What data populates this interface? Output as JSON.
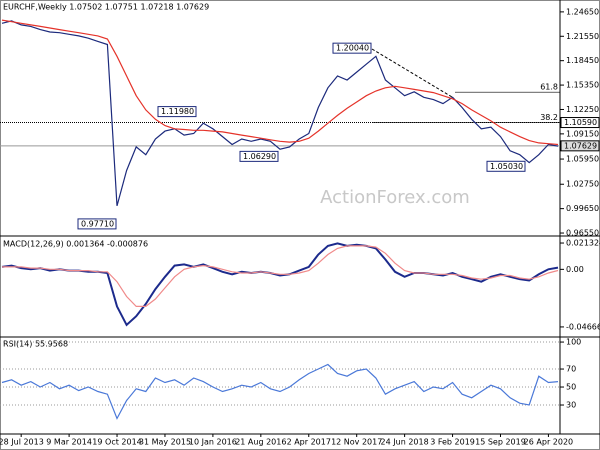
{
  "chart_data": [
    {
      "type": "line",
      "title": "EURCHF,Weekly 1.07502 1.07751 1.07218 1.07629",
      "ylim": [
        0.963,
        1.2616
      ],
      "yticks": [
        {
          "value": 1.2465,
          "label": "1.24650"
        },
        {
          "value": 1.2155,
          "label": "1.21550"
        },
        {
          "value": 1.1845,
          "label": "1.18450"
        },
        {
          "value": 1.1535,
          "label": "1.15350"
        },
        {
          "value": 1.1225,
          "label": "1.12250"
        },
        {
          "value": 1.0915,
          "label": "1.09150"
        },
        {
          "value": 1.0595,
          "label": "1.05950"
        },
        {
          "value": 1.0275,
          "label": "1.02750"
        },
        {
          "value": 0.9965,
          "label": "0.99650"
        },
        {
          "value": 0.9655,
          "label": "0.96550"
        }
      ],
      "series": [
        {
          "name": "EURCHF",
          "color": "#1c2a7c",
          "values": [
            1.232,
            1.235,
            1.23,
            1.228,
            1.224,
            1.221,
            1.22,
            1.218,
            1.216,
            1.213,
            1.209,
            1.205,
            1.0,
            1.045,
            1.075,
            1.065,
            1.085,
            1.095,
            1.098,
            1.09,
            1.092,
            1.105,
            1.098,
            1.088,
            1.078,
            1.085,
            1.082,
            1.085,
            1.082,
            1.072,
            1.075,
            1.085,
            1.092,
            1.125,
            1.15,
            1.165,
            1.16,
            1.17,
            1.18,
            1.19,
            1.16,
            1.15,
            1.14,
            1.145,
            1.138,
            1.135,
            1.13,
            1.138,
            1.125,
            1.11,
            1.098,
            1.1,
            1.088,
            1.07,
            1.065,
            1.055,
            1.065,
            1.078,
            1.076
          ]
        },
        {
          "name": "MA",
          "color": "#e5332a",
          "values": [
            1.236,
            1.234,
            1.232,
            1.23,
            1.228,
            1.226,
            1.224,
            1.222,
            1.22,
            1.218,
            1.216,
            1.212,
            1.19,
            1.165,
            1.14,
            1.122,
            1.11,
            1.102,
            1.098,
            1.097,
            1.096,
            1.096,
            1.095,
            1.094,
            1.092,
            1.09,
            1.088,
            1.086,
            1.084,
            1.082,
            1.081,
            1.082,
            1.086,
            1.095,
            1.105,
            1.115,
            1.124,
            1.132,
            1.14,
            1.146,
            1.15,
            1.152,
            1.15,
            1.148,
            1.146,
            1.144,
            1.14,
            1.136,
            1.13,
            1.122,
            1.115,
            1.108,
            1.1,
            1.094,
            1.088,
            1.083,
            1.08,
            1.079,
            1.078
          ]
        }
      ],
      "annotations": [
        {
          "label": "1.20040",
          "value": 1.2004
        },
        {
          "label": "1.11980",
          "value": 1.1198
        },
        {
          "label": "1.06290",
          "value": 1.0629
        },
        {
          "label": "1.05030",
          "value": 1.0503
        },
        {
          "label": "0.97710",
          "value": 0.9771
        }
      ],
      "levels": [
        {
          "label": "1.10590",
          "value": 1.1059
        },
        {
          "label": "1.07629",
          "value": 1.07629
        }
      ],
      "fib": [
        {
          "label": "61.8",
          "value": 1.1445
        },
        {
          "label": "38.2",
          "value": 1.1059
        }
      ],
      "watermark": "ActionForex.com"
    },
    {
      "type": "line",
      "title": "MACD(12,26,9) 0.001364 -0.000876",
      "ylim": [
        -0.0532,
        0.0254
      ],
      "yticks": [
        0.021324,
        {
          "value": 0,
          "label": "0.00"
        },
        -0.046663
      ],
      "series": [
        {
          "name": "MACD",
          "color": "#1c2a8c",
          "values": [
            0.002,
            0.003,
            0.001,
            0.0,
            0.001,
            -0.001,
            0.0,
            -0.001,
            -0.001,
            -0.002,
            -0.002,
            -0.003,
            -0.03,
            -0.045,
            -0.038,
            -0.028,
            -0.016,
            -0.006,
            0.003,
            0.004,
            0.002,
            0.004,
            0.001,
            -0.002,
            -0.004,
            -0.002,
            -0.003,
            -0.002,
            -0.003,
            -0.005,
            -0.004,
            -0.001,
            0.002,
            0.012,
            0.019,
            0.021,
            0.019,
            0.02,
            0.019,
            0.017,
            0.008,
            -0.002,
            -0.006,
            -0.003,
            -0.003,
            -0.004,
            -0.005,
            -0.003,
            -0.006,
            -0.008,
            -0.01,
            -0.006,
            -0.004,
            -0.006,
            -0.008,
            -0.009,
            -0.004,
            0.0,
            0.0014
          ]
        },
        {
          "name": "Signal",
          "color": "#f08a8a",
          "values": [
            0.002,
            0.002,
            0.002,
            0.001,
            0.001,
            0.0,
            0.0,
            -0.001,
            -0.001,
            -0.001,
            -0.002,
            -0.002,
            -0.01,
            -0.022,
            -0.03,
            -0.03,
            -0.024,
            -0.015,
            -0.006,
            0.0,
            0.002,
            0.003,
            0.002,
            0.0,
            -0.002,
            -0.003,
            -0.003,
            -0.002,
            -0.003,
            -0.004,
            -0.004,
            -0.003,
            -0.001,
            0.005,
            0.012,
            0.017,
            0.019,
            0.019,
            0.019,
            0.018,
            0.013,
            0.005,
            -0.001,
            -0.003,
            -0.003,
            -0.004,
            -0.004,
            -0.004,
            -0.005,
            -0.007,
            -0.008,
            -0.007,
            -0.005,
            -0.005,
            -0.007,
            -0.008,
            -0.006,
            -0.003,
            -0.0009
          ]
        }
      ]
    },
    {
      "type": "line",
      "title": "RSI(14) 55.9568",
      "ylim": [
        0,
        103.4
      ],
      "yticks": [
        100,
        70,
        50,
        30
      ],
      "grid": true,
      "categories": [
        null,
        null,
        "28 Jul 2013",
        null,
        null,
        null,
        null,
        "9 Mar 2014",
        null,
        null,
        null,
        null,
        "19 Oct 2014",
        null,
        null,
        null,
        null,
        "31 May 2015",
        null,
        null,
        null,
        null,
        "10 Jan 2016",
        null,
        null,
        null,
        null,
        "21 Aug 2016",
        null,
        null,
        null,
        null,
        "2 Apr 2017",
        null,
        null,
        null,
        null,
        "12 Nov 2017",
        null,
        null,
        null,
        null,
        "24 Jun 2018",
        null,
        null,
        null,
        null,
        "3 Feb 2019",
        null,
        null,
        null,
        null,
        "15 Sep 2019",
        null,
        null,
        null,
        null,
        "26 Apr 2020",
        null
      ],
      "series": [
        {
          "name": "RSI",
          "color": "#4a78d8",
          "values": [
            55,
            58,
            52,
            56,
            50,
            55,
            48,
            52,
            46,
            50,
            45,
            42,
            15,
            35,
            48,
            45,
            60,
            55,
            58,
            52,
            60,
            56,
            50,
            45,
            48,
            52,
            50,
            55,
            48,
            45,
            50,
            58,
            65,
            70,
            75,
            65,
            62,
            68,
            70,
            60,
            42,
            48,
            52,
            56,
            45,
            50,
            48,
            55,
            42,
            38,
            45,
            52,
            48,
            38,
            32,
            30,
            62,
            55,
            56
          ]
        }
      ]
    }
  ]
}
